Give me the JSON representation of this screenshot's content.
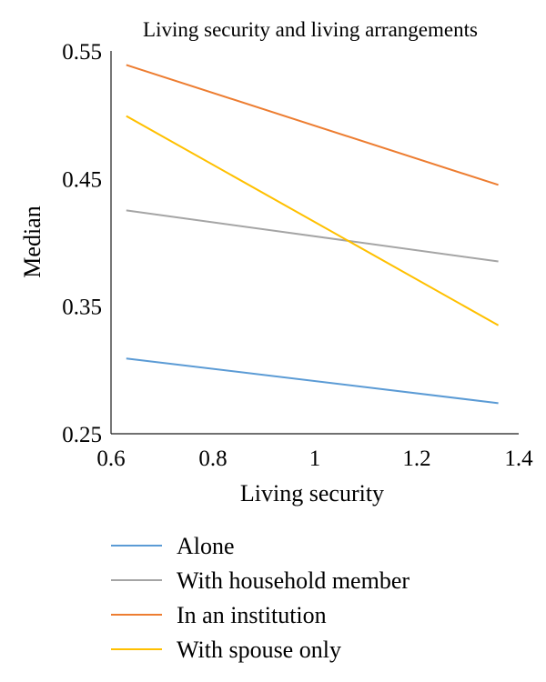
{
  "chart_data": {
    "type": "line",
    "title": "Living security and living arrangements",
    "xlabel": "Living security",
    "ylabel": "Median",
    "xlim": [
      0.6,
      1.4
    ],
    "ylim": [
      0.25,
      0.55
    ],
    "xticks": [
      0.6,
      0.8,
      1,
      1.2,
      1.4
    ],
    "xtick_labels": [
      "0.6",
      "0.8",
      "1",
      "1.2",
      "1.4"
    ],
    "yticks": [
      0.25,
      0.35,
      0.45,
      0.55
    ],
    "ytick_labels": [
      "0.25",
      "0.35",
      "0.45",
      "0.55"
    ],
    "grid": false,
    "legend_position": "bottom",
    "x": [
      0.63,
      1.36
    ],
    "series": [
      {
        "name": "Alone",
        "values": [
          0.309,
          0.274
        ],
        "color": "#5b9bd5"
      },
      {
        "name": "With household member",
        "values": [
          0.425,
          0.385
        ],
        "color": "#a5a5a5"
      },
      {
        "name": "In an institution",
        "values": [
          0.539,
          0.445
        ],
        "color": "#ed7d31"
      },
      {
        "name": "With spouse only",
        "values": [
          0.499,
          0.335
        ],
        "color": "#ffc000"
      }
    ]
  }
}
